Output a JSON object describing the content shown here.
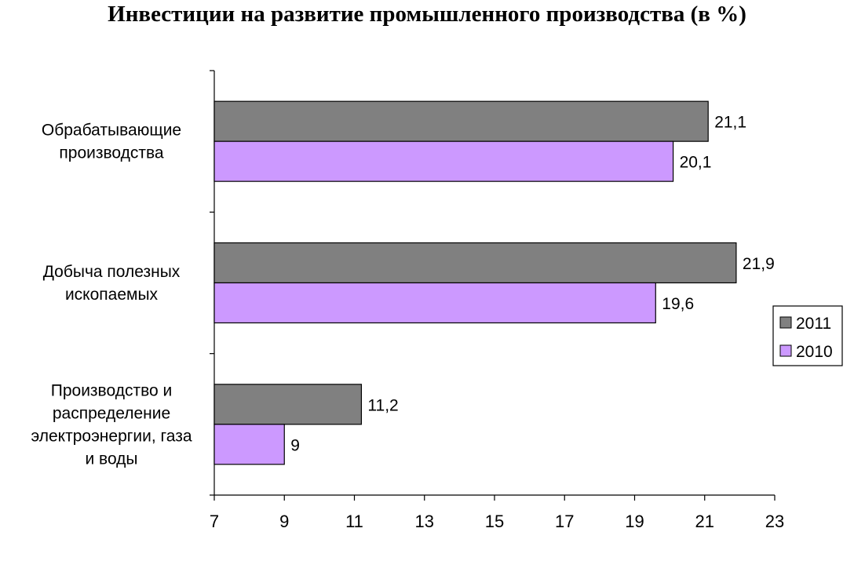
{
  "chart_data": {
    "type": "bar",
    "orientation": "horizontal",
    "title": "Инвестиции на развитие промышленного производства (в %)",
    "categories": [
      [
        "Обрабатывающие",
        "производства"
      ],
      [
        "Добыча полезных",
        "ископаемых"
      ],
      [
        "Производство и",
        "распределение",
        "электроэнергии, газа",
        "и воды"
      ]
    ],
    "series": [
      {
        "name": "2011",
        "color": "#808080",
        "values": [
          21.1,
          21.9,
          11.2
        ],
        "labels": [
          "21,1",
          "21,9",
          "11,2"
        ]
      },
      {
        "name": "2010",
        "color": "#cc99ff",
        "values": [
          20.1,
          19.6,
          9
        ],
        "labels": [
          "20,1",
          "19,6",
          "9"
        ]
      }
    ],
    "xlim": [
      7,
      23
    ],
    "xticks": [
      7,
      9,
      11,
      13,
      15,
      17,
      19,
      21,
      23
    ],
    "grid": false,
    "legend_position": "right"
  }
}
